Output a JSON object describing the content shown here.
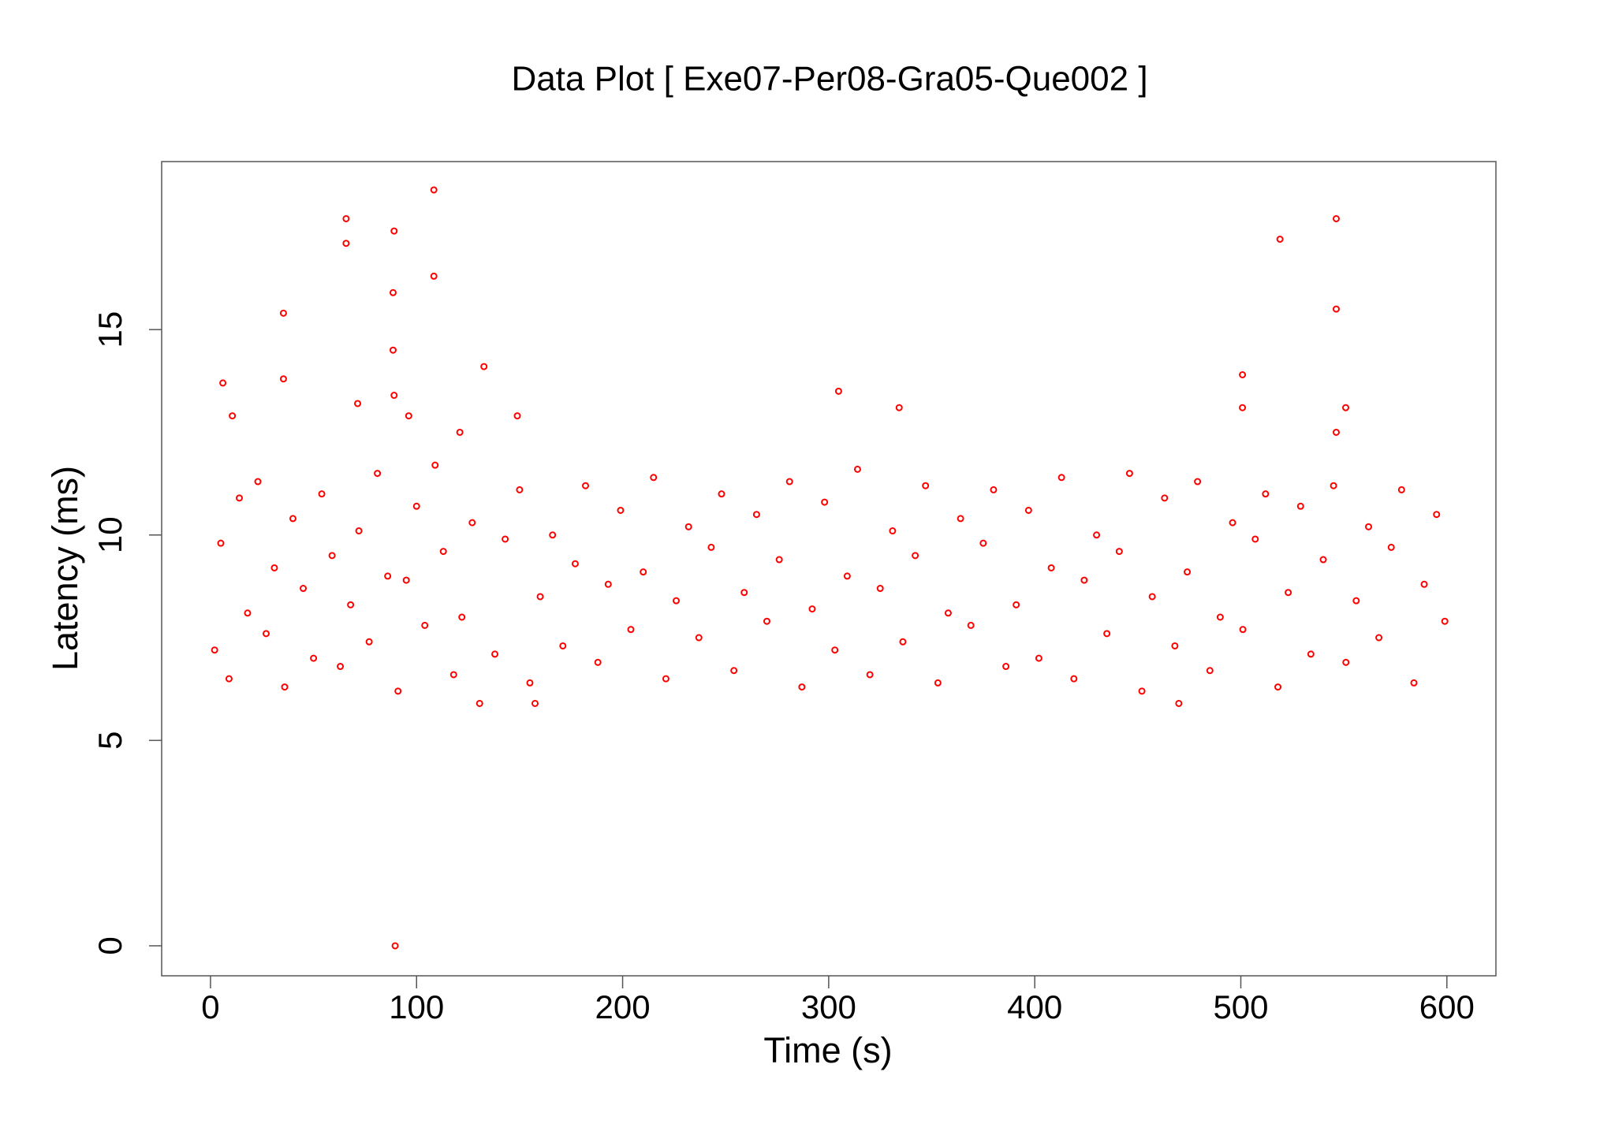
{
  "chart_data": {
    "type": "scatter",
    "title": "Data Plot [ Exe07-Per08-Gra05-Que002 ]",
    "x_label": "Time (s)",
    "y_label": "Latency (ms)",
    "xlim": [
      -23.7,
      623.8
    ],
    "ylim": [
      -0.73,
      19.09
    ],
    "xticks": [
      0,
      100,
      200,
      300,
      400,
      500,
      600
    ],
    "yticks": [
      0,
      5,
      10,
      15
    ],
    "series": [
      {
        "color": "#ff0000",
        "x": [
          6,
          10.6,
          35.4,
          35.4,
          65.8,
          65.8,
          71.4,
          89.1,
          88.6,
          88.6,
          89.1,
          96.2,
          108.4,
          108.4,
          132.7,
          148.9,
          121,
          89.6,
          304.8,
          334.2,
          500.8,
          500.8,
          519,
          546.3,
          546.3,
          550.9,
          546.3,
          157.5,
          469.9,
          130.6,
          2,
          5,
          9,
          14,
          18,
          23,
          27,
          31,
          36,
          40,
          45,
          50,
          54,
          59,
          63,
          68,
          72,
          77,
          81,
          86,
          91,
          95,
          100,
          104,
          109,
          113,
          118,
          122,
          127,
          138,
          143,
          150,
          155,
          160,
          166,
          171,
          177,
          182,
          188,
          193,
          199,
          204,
          210,
          215,
          221,
          226,
          232,
          237,
          243,
          248,
          254,
          259,
          265,
          270,
          276,
          281,
          287,
          292,
          298,
          303,
          309,
          314,
          320,
          325,
          331,
          336,
          342,
          347,
          353,
          358,
          364,
          369,
          375,
          380,
          386,
          391,
          397,
          402,
          408,
          413,
          419,
          424,
          430,
          435,
          441,
          446,
          452,
          457,
          463,
          468,
          474,
          479,
          485,
          490,
          496,
          501,
          507,
          512,
          518,
          523,
          529,
          534,
          540,
          545,
          551,
          556,
          562,
          567,
          573,
          578,
          584,
          589,
          595,
          599
        ],
        "y": [
          13.7,
          12.9,
          15.4,
          13.8,
          17.7,
          17.1,
          13.2,
          17.4,
          15.9,
          14.5,
          13.4,
          12.9,
          18.4,
          16.3,
          14.1,
          12.9,
          12.5,
          0,
          13.5,
          13.1,
          13.9,
          13.1,
          17.2,
          17.7,
          15.5,
          13.1,
          12.5,
          5.9,
          5.9,
          5.9,
          7.2,
          9.8,
          6.5,
          10.9,
          8.1,
          11.3,
          7.6,
          9.2,
          6.3,
          10.4,
          8.7,
          7.0,
          11.0,
          9.5,
          6.8,
          8.3,
          10.1,
          7.4,
          11.5,
          9.0,
          6.2,
          8.9,
          10.7,
          7.8,
          11.7,
          9.6,
          6.6,
          8.0,
          10.3,
          7.1,
          9.9,
          11.1,
          6.4,
          8.5,
          10.0,
          7.3,
          9.3,
          11.2,
          6.9,
          8.8,
          10.6,
          7.7,
          9.1,
          11.4,
          6.5,
          8.4,
          10.2,
          7.5,
          9.7,
          11.0,
          6.7,
          8.6,
          10.5,
          7.9,
          9.4,
          11.3,
          6.3,
          8.2,
          10.8,
          7.2,
          9.0,
          11.6,
          6.6,
          8.7,
          10.1,
          7.4,
          9.5,
          11.2,
          6.4,
          8.1,
          10.4,
          7.8,
          9.8,
          11.1,
          6.8,
          8.3,
          10.6,
          7.0,
          9.2,
          11.4,
          6.5,
          8.9,
          10.0,
          7.6,
          9.6,
          11.5,
          6.2,
          8.5,
          10.9,
          7.3,
          9.1,
          11.3,
          6.7,
          8.0,
          10.3,
          7.7,
          9.9,
          11.0,
          6.3,
          8.6,
          10.7,
          7.1,
          9.4,
          11.2,
          6.9,
          8.4,
          10.2,
          7.5,
          9.7,
          11.1,
          6.4,
          8.8,
          10.5,
          7.9
        ]
      }
    ]
  }
}
